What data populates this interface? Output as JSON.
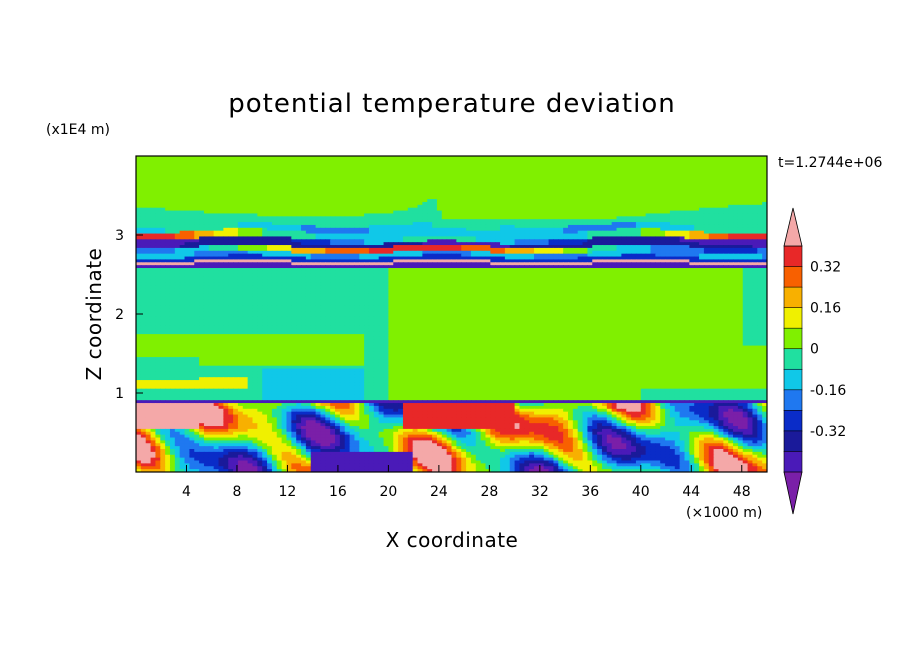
{
  "chart_data": {
    "type": "heatmap",
    "title": "potential temperature deviation",
    "xlabel": "X coordinate",
    "ylabel": "Z coordinate",
    "x_unit_label": "(×1000 m)",
    "y_unit_label": "(x1E4 m)",
    "time_label": "t=1.2744e+06",
    "xlim": [
      0,
      50
    ],
    "ylim": [
      0,
      4
    ],
    "x_ticks": [
      4,
      8,
      12,
      16,
      20,
      24,
      28,
      32,
      36,
      40,
      44,
      48
    ],
    "y_ticks": [
      1,
      2,
      3
    ],
    "colorbar": {
      "levels": [
        -0.48,
        -0.4,
        -0.32,
        -0.24,
        -0.16,
        -0.08,
        0,
        0.08,
        0.16,
        0.24,
        0.32,
        0.4
      ],
      "colors": [
        "#7a1fa8",
        "#4a1ab8",
        "#1a1a9a",
        "#0a2cc8",
        "#1f78f0",
        "#10c8e8",
        "#20e0a0",
        "#80f000",
        "#f0f000",
        "#f8b000",
        "#f86000",
        "#e82828",
        "#f4a8a8"
      ],
      "labels": [
        "0.32",
        "0.16",
        "0",
        "-0.16",
        "-0.32"
      ],
      "label_values": [
        0.32,
        0.16,
        0,
        -0.16,
        -0.32
      ],
      "extend": "both"
    },
    "structure": [
      {
        "z_range": [
          3.2,
          4.0
        ],
        "value": 0.0
      },
      {
        "z_range": [
          2.6,
          3.2
        ],
        "value": "stratified bands, -0.4 to 0.4"
      },
      {
        "z_range": [
          0.9,
          2.6
        ],
        "value": 0.04
      },
      {
        "z_range": [
          0.0,
          0.9
        ],
        "value": "turbulent, -0.48 to 0.48"
      }
    ]
  }
}
